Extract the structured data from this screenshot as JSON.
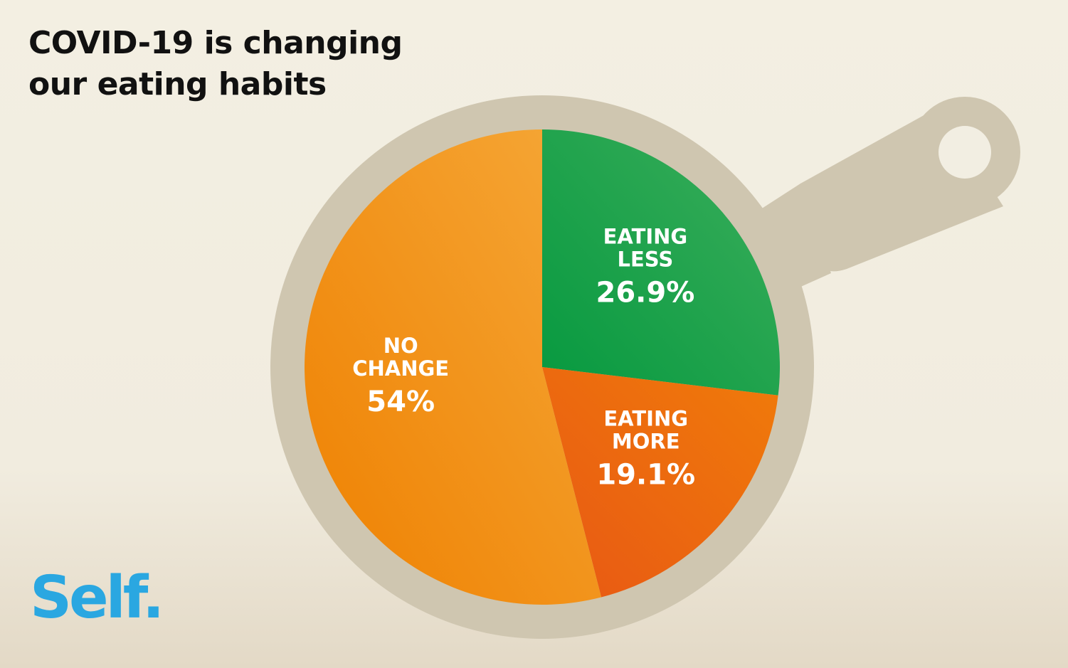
{
  "title_lines": [
    "COVID-19 is changing",
    "our eating habits"
  ],
  "brand": "Self.",
  "chart_data": {
    "type": "pie",
    "title": "COVID-19 is changing our eating habits",
    "slices": [
      {
        "label_lines": [
          "EATING",
          "LESS"
        ],
        "value": 26.9,
        "display": "26.9%",
        "color": "#0a9d46"
      },
      {
        "label_lines": [
          "EATING",
          "MORE"
        ],
        "value": 19.1,
        "display": "19.1%",
        "color": "#ec6a0f"
      },
      {
        "label_lines": [
          "NO",
          "CHANGE"
        ],
        "value": 54,
        "display": "54%",
        "color": "#f39a22"
      }
    ],
    "start": "12 o'clock",
    "direction": "clockwise"
  },
  "colors": {
    "pan": "#cfc6b0",
    "text": "#111111",
    "brand": "#2aa7e1",
    "background": "#f2eee2"
  }
}
